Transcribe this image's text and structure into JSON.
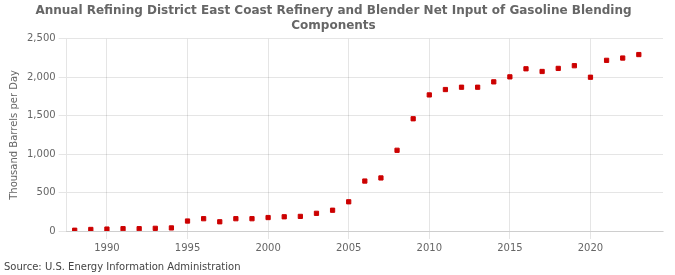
{
  "chart_data": {
    "type": "scatter",
    "title": "Annual Refining District East Coast Refinery and Blender Net Input of Gasoline Blending\nComponents",
    "ylabel": "Thousand Barrels per Day",
    "source": "Source: U.S. Energy Information Administration",
    "x": [
      1988,
      1989,
      1990,
      1991,
      1992,
      1993,
      1994,
      1995,
      1996,
      1997,
      1998,
      1999,
      2000,
      2001,
      2002,
      2003,
      2004,
      2005,
      2006,
      2007,
      2008,
      2009,
      2010,
      2011,
      2012,
      2013,
      2014,
      2015,
      2016,
      2017,
      2018,
      2019,
      2020,
      2021,
      2022,
      2023
    ],
    "values": [
      10,
      20,
      25,
      30,
      30,
      35,
      40,
      130,
      160,
      120,
      160,
      160,
      175,
      185,
      190,
      230,
      270,
      380,
      650,
      690,
      1050,
      1460,
      1770,
      1840,
      1870,
      1870,
      1940,
      2005,
      2110,
      2075,
      2115,
      2150,
      2000,
      2220,
      2250,
      2295
    ],
    "color": "#cc0000",
    "marker": "square",
    "xlim": [
      1987.5,
      2024.5
    ],
    "xticks": [
      1990,
      1995,
      2000,
      2005,
      2010,
      2015,
      2020
    ],
    "ylim": [
      0,
      2500
    ],
    "yticks": [
      0,
      500,
      {
        "value": 1000,
        "label": "1,000"
      },
      {
        "value": 1500,
        "label": "1,500"
      },
      {
        "value": 2000,
        "label": "2,000"
      },
      {
        "value": 2500,
        "label": "2,500"
      }
    ],
    "grid": true
  }
}
